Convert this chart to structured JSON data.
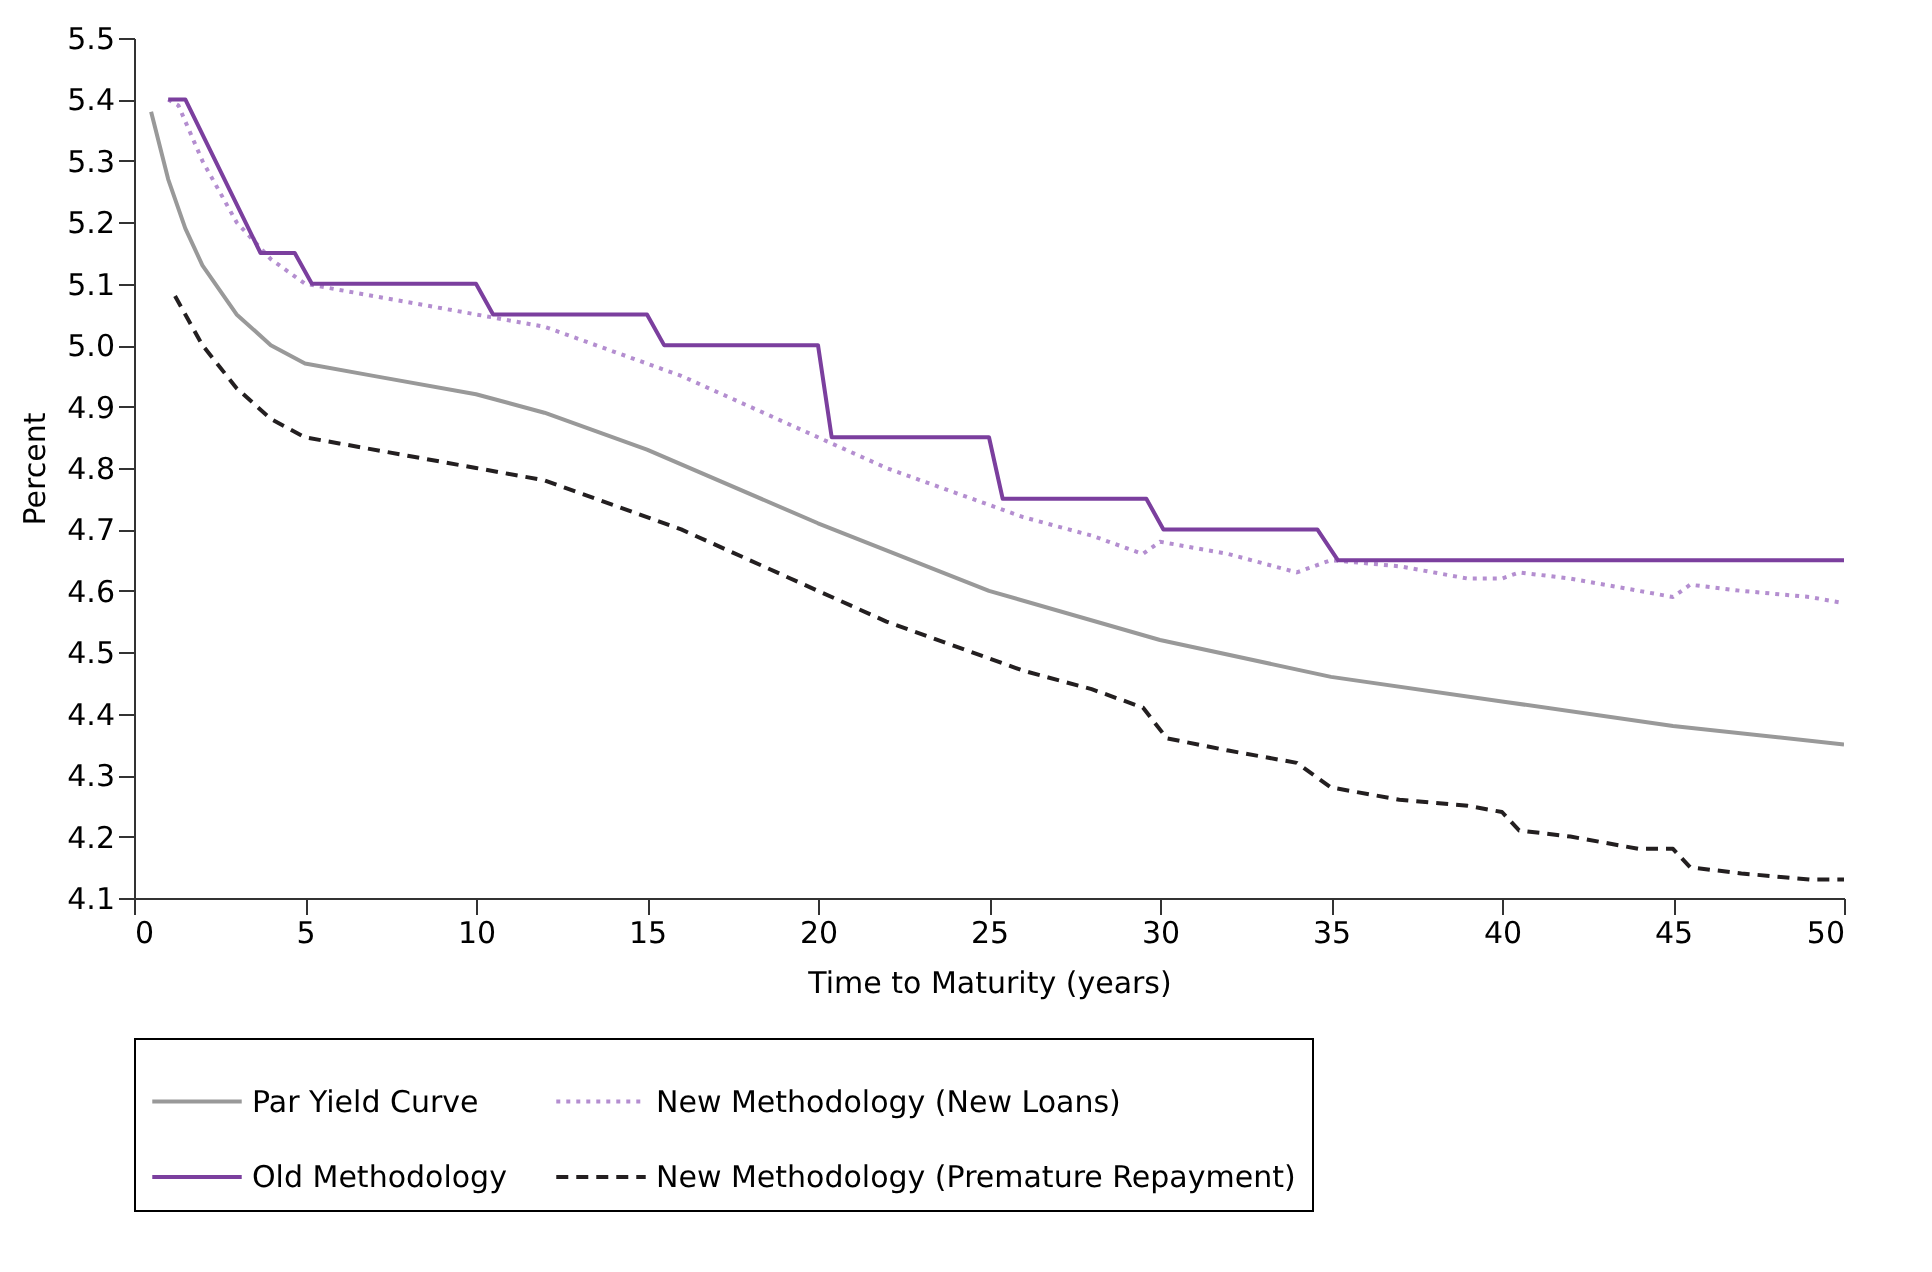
{
  "chart_data": {
    "type": "line",
    "xlabel": "Time to Maturity (years)",
    "ylabel": "Percent",
    "xlim": [
      0,
      50
    ],
    "xticks": [
      0,
      5,
      10,
      15,
      20,
      25,
      30,
      35,
      40,
      45,
      50
    ],
    "ylim": [
      4.1,
      5.5
    ],
    "yticks": [
      4.1,
      4.2,
      4.3,
      4.4,
      4.5,
      4.6,
      4.7,
      4.8,
      4.9,
      {
        "value": 5,
        "label": "5.0"
      },
      5.1,
      5.2,
      5.3,
      5.4,
      5.5
    ],
    "grid": false,
    "legend": "bottom",
    "series": [
      {
        "name": "Par Yield Curve",
        "color": "#999999",
        "line_style": "solid",
        "x": [
          0.5,
          1,
          1.5,
          2,
          3,
          4,
          5,
          7,
          10,
          12,
          15,
          20,
          25,
          30,
          35,
          40,
          45,
          50
        ],
        "values": [
          5.38,
          5.27,
          5.19,
          5.13,
          5.05,
          5.0,
          4.97,
          4.95,
          4.92,
          4.89,
          4.83,
          4.71,
          4.6,
          4.52,
          4.46,
          4.42,
          4.38,
          4.35
        ]
      },
      {
        "name": "New Methodology (New Loans)",
        "color": "#b48ed0",
        "line_style": "dotted",
        "x": [
          1,
          1.3,
          2,
          3,
          4,
          5,
          6,
          8,
          10,
          12,
          14,
          16,
          18,
          20,
          22,
          24,
          26,
          28,
          29.5,
          30,
          32,
          34,
          35,
          37,
          39,
          40,
          40.5,
          42,
          44,
          45,
          45.5,
          47,
          49,
          50
        ],
        "values": [
          5.4,
          5.39,
          5.3,
          5.2,
          5.14,
          5.1,
          5.09,
          5.07,
          5.05,
          5.03,
          4.99,
          4.95,
          4.9,
          4.85,
          4.8,
          4.76,
          4.72,
          4.69,
          4.66,
          4.68,
          4.66,
          4.63,
          4.65,
          4.64,
          4.62,
          4.62,
          4.63,
          4.62,
          4.6,
          4.59,
          4.61,
          4.6,
          4.59,
          4.58
        ]
      },
      {
        "name": "Old Methodology",
        "color": "#7b3f9e",
        "line_style": "solid",
        "x": [
          1,
          1.5,
          3.7,
          4.7,
          5.2,
          10,
          10.5,
          15,
          15.5,
          20,
          20.4,
          25,
          25.4,
          29.6,
          30.1,
          34.6,
          35.2,
          50
        ],
        "values": [
          5.4,
          5.4,
          5.15,
          5.15,
          5.1,
          5.1,
          5.05,
          5.05,
          5.0,
          5.0,
          4.85,
          4.85,
          4.75,
          4.75,
          4.7,
          4.7,
          4.65,
          4.65
        ]
      },
      {
        "name": "New Methodology (Premature Repayment)",
        "color": "#231f20",
        "line_style": "dashed",
        "x": [
          1.2,
          2,
          3,
          4,
          5,
          6,
          8,
          10,
          12,
          14,
          16,
          18,
          20,
          22,
          24,
          26,
          28,
          29.5,
          30.2,
          32,
          34,
          35,
          37,
          39,
          40,
          40.5,
          42,
          44,
          45,
          45.5,
          47,
          49,
          50
        ],
        "values": [
          5.08,
          5.0,
          4.93,
          4.88,
          4.85,
          4.84,
          4.82,
          4.8,
          4.78,
          4.74,
          4.7,
          4.65,
          4.6,
          4.55,
          4.51,
          4.47,
          4.44,
          4.41,
          4.36,
          4.34,
          4.32,
          4.28,
          4.26,
          4.25,
          4.24,
          4.21,
          4.2,
          4.18,
          4.18,
          4.15,
          4.14,
          4.13,
          4.13
        ]
      }
    ]
  }
}
